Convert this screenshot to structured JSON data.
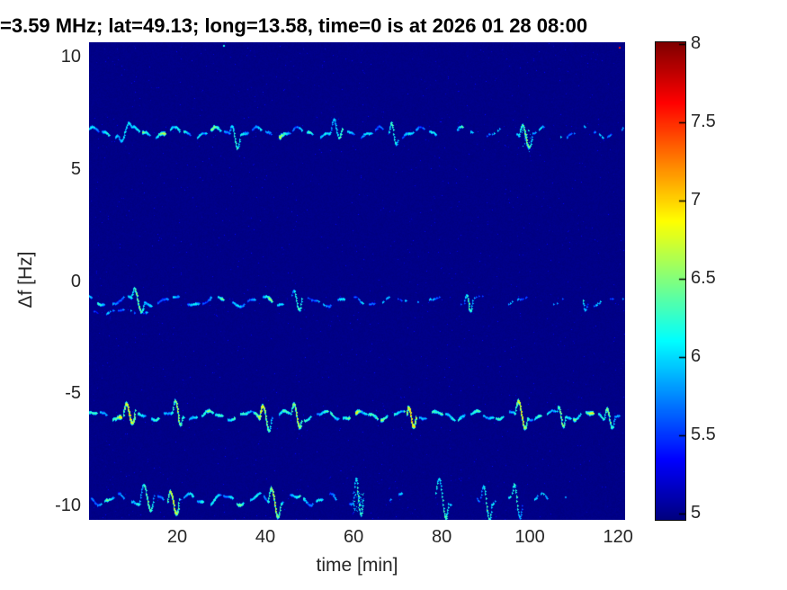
{
  "title": "=3.59 MHz;  lat=49.13; long=13.58, time=0 is at 2026 01 28 08:00",
  "axes": {
    "xlabel": "time [min]",
    "ylabel": "Δf [Hz]",
    "x_ticks": [
      20,
      40,
      60,
      80,
      100,
      120
    ],
    "y_ticks": [
      10,
      5,
      0,
      -5,
      -10
    ],
    "xlim": [
      0,
      121.6
    ],
    "ylim": [
      -10.64,
      10.64
    ]
  },
  "colorbar": {
    "colormap": "jet",
    "cmin": 5,
    "cmax": 8,
    "ticks": [
      8,
      7.5,
      7,
      6.5,
      6,
      5.5,
      5
    ]
  },
  "chart_data": {
    "type": "heatmap",
    "description": "Doppler shift spectrogram: intensity (colorbar units 5-8, jet colormap) vs time [min] and frequency offset df [Hz]. Dark blue background ~5.0 with four wavy dashed spectral traces.",
    "background_level": 5.0,
    "traces": [
      {
        "name": "trace-plus6.6Hz",
        "df_hz": 6.62,
        "amp1": 0.2,
        "wl1": 9.3,
        "ph1": 1.0,
        "amp2": 0.07,
        "wl2": 3.1,
        "ph2": 0.3,
        "level": 5.75,
        "segments": [
          [
            0,
            79,
            0.85
          ],
          [
            83,
            87,
            0.55
          ],
          [
            90,
            93,
            0.4
          ],
          [
            97,
            103,
            0.5
          ],
          [
            107,
            110,
            0.3
          ],
          [
            112,
            121,
            0.25
          ]
        ],
        "hotspots": [
          [
            4,
            6.3
          ],
          [
            12,
            6.6
          ],
          [
            17,
            6.8
          ],
          [
            21,
            6.5
          ],
          [
            28,
            6.7
          ],
          [
            33,
            6.4
          ],
          [
            43,
            6.8
          ],
          [
            50,
            6.4
          ],
          [
            57,
            6.5
          ],
          [
            69,
            6.3
          ],
          [
            85,
            6.6
          ],
          [
            99,
            6.7
          ]
        ],
        "loops": [
          [
            8,
            1.5,
            -0.35
          ],
          [
            33,
            1.2,
            0.45
          ],
          [
            56,
            1.3,
            0.5
          ],
          [
            69,
            1.0,
            0.4
          ],
          [
            99,
            1.5,
            0.6
          ]
        ],
        "dash": {
          "period": 3.1,
          "duty": 0.62,
          "phase": 0.1
        }
      },
      {
        "name": "trace-minus0.9Hz",
        "df_hz": -0.88,
        "amp1": 0.18,
        "wl1": 10.0,
        "ph1": 2.2,
        "amp2": 0.06,
        "wl2": 4.0,
        "ph2": 1.1,
        "level": 5.7,
        "segments": [
          [
            0,
            44,
            0.85
          ],
          [
            46,
            58,
            0.5
          ],
          [
            60,
            72,
            0.35
          ],
          [
            75,
            80,
            0.25
          ],
          [
            84,
            90,
            0.2
          ],
          [
            95,
            100,
            0.25
          ],
          [
            104,
            108,
            0.2
          ],
          [
            112,
            116,
            0.25
          ],
          [
            118,
            121,
            0.3
          ]
        ],
        "hotspots": [
          [
            2,
            6.4
          ],
          [
            11,
            6.7
          ],
          [
            21,
            6.2
          ],
          [
            30,
            6.5
          ],
          [
            41,
            6.6
          ],
          [
            48,
            6.3
          ],
          [
            62,
            6.0
          ],
          [
            86,
            6.0
          ],
          [
            116,
            6.1
          ]
        ],
        "loops": [
          [
            11,
            1.5,
            0.5
          ],
          [
            47,
            1.3,
            0.55
          ],
          [
            86,
            1.0,
            0.4
          ],
          [
            112,
            1.0,
            0.35
          ]
        ],
        "dash": {
          "period": 3.4,
          "duty": 0.6,
          "phase": 0.45
        }
      },
      {
        "name": "trace-minus0.9Hz-subtrace",
        "df_hz": -1.35,
        "amp1": 0.1,
        "wl1": 9.0,
        "ph1": 2.6,
        "amp2": 0.04,
        "wl2": 4.0,
        "ph2": 0.0,
        "level": 5.6,
        "segments": [
          [
            0,
            13,
            0.45
          ]
        ],
        "hotspots": [
          [
            6,
            5.9
          ]
        ],
        "loops": [],
        "dash": {
          "period": 2.8,
          "duty": 0.55,
          "phase": 0.7
        }
      },
      {
        "name": "trace-minus6Hz",
        "df_hz": -5.98,
        "amp1": 0.16,
        "wl1": 8.6,
        "ph1": 0.4,
        "amp2": 0.06,
        "wl2": 3.4,
        "ph2": 2.0,
        "level": 5.95,
        "segments": [
          [
            0,
            121,
            0.9
          ]
        ],
        "hotspots": [
          [
            7,
            6.9
          ],
          [
            9,
            7.1
          ],
          [
            20,
            6.8
          ],
          [
            27,
            6.6
          ],
          [
            33,
            6.5
          ],
          [
            39,
            7.0
          ],
          [
            47,
            6.9
          ],
          [
            55,
            6.4
          ],
          [
            60,
            7.1
          ],
          [
            66,
            6.8
          ],
          [
            73,
            7.2
          ],
          [
            80,
            6.5
          ],
          [
            88,
            6.4
          ],
          [
            98,
            7.0
          ],
          [
            103,
            6.6
          ],
          [
            110,
            6.5
          ],
          [
            114,
            6.9
          ],
          [
            118,
            6.5
          ]
        ],
        "loops": [
          [
            9,
            1.4,
            0.55
          ],
          [
            20,
            1.2,
            0.5
          ],
          [
            40,
            1.4,
            0.6
          ],
          [
            47,
            1.2,
            0.5
          ],
          [
            73,
            1.0,
            0.4
          ],
          [
            98,
            1.4,
            0.55
          ],
          [
            107,
            1.0,
            0.4
          ],
          [
            118,
            1.2,
            0.5
          ]
        ],
        "dash": {
          "period": 2.9,
          "duty": 0.7,
          "phase": 0.2
        }
      },
      {
        "name": "trace-minus9.7Hz",
        "df_hz": -9.72,
        "amp1": 0.2,
        "wl1": 8.0,
        "ph1": 2.8,
        "amp2": 0.07,
        "wl2": 3.2,
        "ph2": 0.9,
        "level": 5.8,
        "segments": [
          [
            0,
            56,
            0.85
          ],
          [
            59,
            63,
            0.6
          ],
          [
            68,
            72,
            0.45
          ],
          [
            78,
            82,
            0.5
          ],
          [
            88,
            92,
            0.45
          ],
          [
            95,
            99,
            0.5
          ],
          [
            101,
            104,
            0.3
          ]
        ],
        "hotspots": [
          [
            4,
            6.5
          ],
          [
            11,
            6.3
          ],
          [
            19,
            7.0
          ],
          [
            26,
            6.4
          ],
          [
            34,
            6.6
          ],
          [
            42,
            6.9
          ],
          [
            48,
            6.5
          ],
          [
            61,
            6.4
          ],
          [
            78,
            6.6
          ],
          [
            90,
            6.2
          ],
          [
            96,
            6.3
          ],
          [
            103,
            6.2
          ]
        ],
        "loops": [
          [
            13,
            1.6,
            0.7
          ],
          [
            19,
            1.4,
            0.6
          ],
          [
            42,
            1.4,
            0.6
          ],
          [
            61,
            1.2,
            0.9
          ],
          [
            80,
            1.5,
            0.8
          ],
          [
            90,
            1.3,
            0.7
          ],
          [
            97,
            1.2,
            0.6
          ]
        ],
        "dash": {
          "period": 3.0,
          "duty": 0.65,
          "phase": 0.85
        }
      }
    ],
    "blobs": [
      {
        "t": 61,
        "df": -9.85,
        "radius_min": 1.2,
        "radius_hz": 0.45,
        "n": 70,
        "level": 6.3
      },
      {
        "t": 99,
        "df": 6.3,
        "radius_min": 1.0,
        "radius_hz": 0.5,
        "n": 45,
        "level": 6.2
      }
    ],
    "specks": [
      {
        "t": 30.3,
        "df": 10.5,
        "level": 6.3
      },
      {
        "t": 120.2,
        "df": 10.45,
        "level": 7.7
      },
      {
        "t": 74.5,
        "df": -0.9,
        "level": 5.9
      },
      {
        "t": 108.0,
        "df": -9.6,
        "level": 5.9
      }
    ]
  }
}
